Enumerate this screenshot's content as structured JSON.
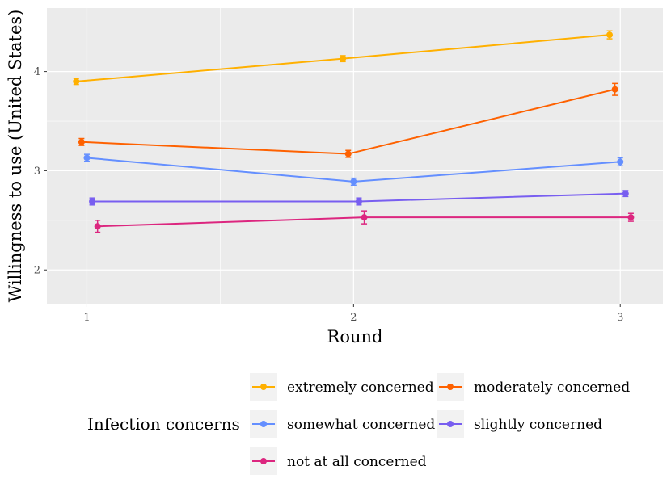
{
  "chart_data": {
    "type": "line",
    "title": "",
    "xlabel": "Round",
    "ylabel": "Willingness to use (United States)",
    "x": [
      1,
      2,
      3
    ],
    "x_tick_labels": [
      "1",
      "2",
      "3"
    ],
    "y_tick_values": [
      2,
      3,
      4
    ],
    "y_tick_labels": [
      "2",
      "3",
      "4"
    ],
    "xlim": [
      0.85,
      3.16
    ],
    "ylim": [
      1.66,
      4.64
    ],
    "grid": true,
    "legend_title": "Infection concerns",
    "legend_position": "bottom",
    "series": [
      {
        "name": "extremely concerned",
        "color": "#FFB000",
        "dodge": -0.04,
        "values": [
          3.9,
          4.13,
          4.37
        ],
        "err": [
          0.03,
          0.03,
          0.04
        ]
      },
      {
        "name": "moderately concerned",
        "color": "#FE6100",
        "dodge": -0.02,
        "values": [
          3.29,
          3.17,
          3.82
        ],
        "err": [
          0.035,
          0.035,
          0.06
        ]
      },
      {
        "name": "somewhat concerned",
        "color": "#648FFF",
        "dodge": 0.0,
        "values": [
          3.13,
          2.89,
          3.09
        ],
        "err": [
          0.035,
          0.035,
          0.04
        ]
      },
      {
        "name": "slightly concerned",
        "color": "#785EF0",
        "dodge": 0.02,
        "values": [
          2.69,
          2.69,
          2.77
        ],
        "err": [
          0.035,
          0.035,
          0.03
        ]
      },
      {
        "name": "not at all concerned",
        "color": "#DC267F",
        "dodge": 0.04,
        "values": [
          2.44,
          2.53,
          2.53
        ],
        "err": [
          0.06,
          0.065,
          0.04
        ]
      }
    ]
  }
}
